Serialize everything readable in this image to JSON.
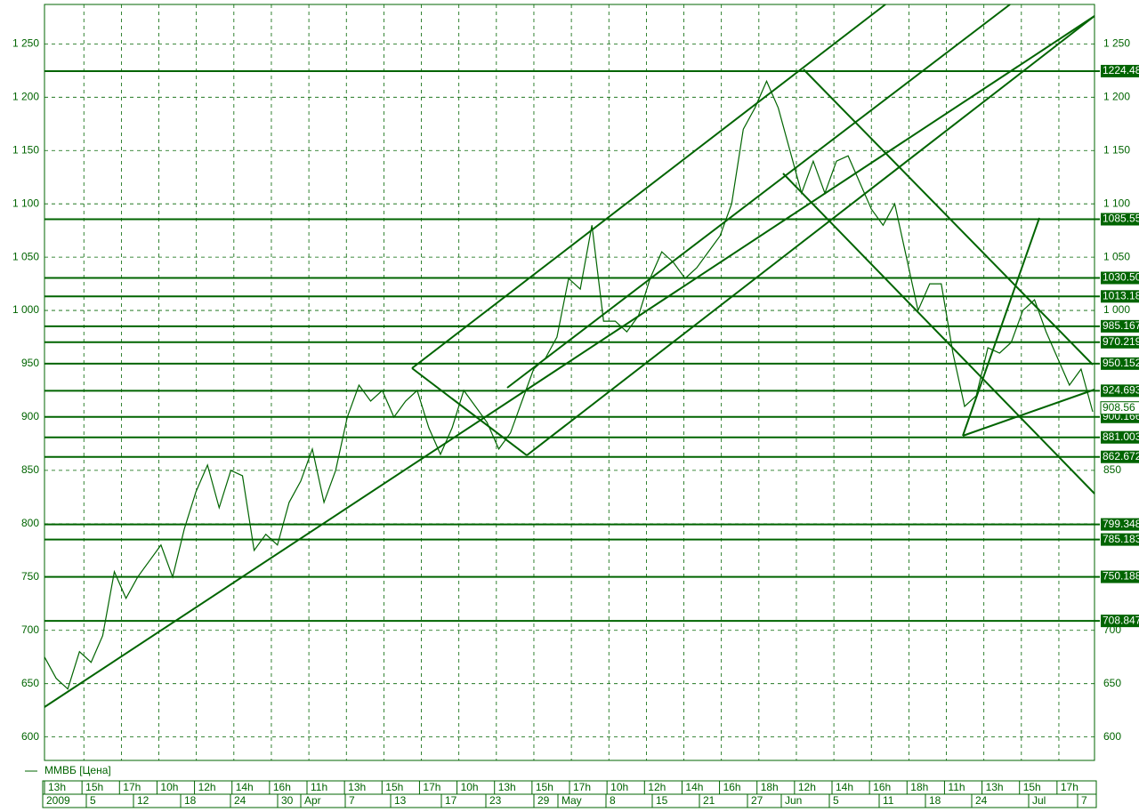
{
  "chart_data": {
    "type": "line",
    "series": [
      {
        "name": "ММВБ [Цена]",
        "color": "#006400",
        "values": [
          675,
          655,
          645,
          680,
          670,
          695,
          755,
          730,
          750,
          765,
          780,
          750,
          795,
          830,
          855,
          815,
          850,
          845,
          775,
          790,
          780,
          820,
          840,
          870,
          820,
          850,
          900,
          930,
          915,
          925,
          900,
          915,
          925,
          890,
          865,
          890,
          925,
          910,
          895,
          870,
          885,
          915,
          945,
          955,
          975,
          1030,
          1020,
          1080,
          990,
          990,
          980,
          995,
          1030,
          1055,
          1045,
          1030,
          1040,
          1055,
          1070,
          1100,
          1170,
          1190,
          1215,
          1190,
          1150,
          1110,
          1140,
          1110,
          1140,
          1145,
          1120,
          1095,
          1080,
          1100,
          1050,
          1000,
          1025,
          1025,
          960,
          910,
          920,
          965,
          960,
          970,
          1000,
          1010,
          980,
          955,
          930,
          945,
          905
        ]
      }
    ],
    "ylim": [
      578,
      1287
    ],
    "yticks": [
      {
        "value": 600,
        "label": "600"
      },
      {
        "value": 650,
        "label": "650"
      },
      {
        "value": 700,
        "label": "700"
      },
      {
        "value": 750,
        "label": "750"
      },
      {
        "value": 800,
        "label": "800"
      },
      {
        "value": 850,
        "label": "850"
      },
      {
        "value": 900,
        "label": "900"
      },
      {
        "value": 950,
        "label": "950"
      },
      {
        "value": 1000,
        "label": "1 000"
      },
      {
        "value": 1050,
        "label": "1 050"
      },
      {
        "value": 1100,
        "label": "1 100"
      },
      {
        "value": 1150,
        "label": "1 150"
      },
      {
        "value": 1200,
        "label": "1 200"
      },
      {
        "value": 1250,
        "label": "1 250"
      }
    ],
    "levels": [
      {
        "value": 1224.48,
        "label": "1224.48"
      },
      {
        "value": 1085.55,
        "label": "1085.550"
      },
      {
        "value": 1030.5,
        "label": "1030.500"
      },
      {
        "value": 1013.18,
        "label": "1013.180"
      },
      {
        "value": 985.167,
        "label": "985.1673"
      },
      {
        "value": 970.219,
        "label": "970.2197"
      },
      {
        "value": 950.152,
        "label": "950.1527"
      },
      {
        "value": 924.693,
        "label": "924.6937"
      },
      {
        "value": 900.166,
        "label": "900.1663"
      },
      {
        "value": 881.003,
        "label": "881.0030"
      },
      {
        "value": 862.672,
        "label": "862.6727"
      },
      {
        "value": 799.348,
        "label": "799.3480"
      },
      {
        "value": 785.183,
        "label": "785.1834"
      },
      {
        "value": 750.188,
        "label": "750.1884"
      },
      {
        "value": 708.847,
        "label": "708.8471"
      }
    ],
    "last_price": {
      "value": 908.56,
      "label": "908.56"
    },
    "grid": true,
    "x_labels_top": [
      "13h",
      "15h",
      "17h",
      "10h",
      "12h",
      "14h",
      "16h",
      "11h",
      "13h",
      "15h",
      "17h",
      "10h",
      "13h",
      "15h",
      "17h",
      "10h",
      "12h",
      "14h",
      "16h",
      "18h",
      "12h",
      "14h",
      "16h",
      "18h",
      "11h",
      "13h",
      "15h",
      "17h"
    ],
    "x_labels_bottom": [
      "2009",
      "5",
      "12",
      "18",
      "24",
      "30",
      "Apr",
      "7",
      "13",
      "17",
      "23",
      "29",
      "May",
      "8",
      "15",
      "21",
      "27",
      "Jun",
      "5",
      "11",
      "18",
      "24",
      "Jul",
      "7"
    ]
  }
}
